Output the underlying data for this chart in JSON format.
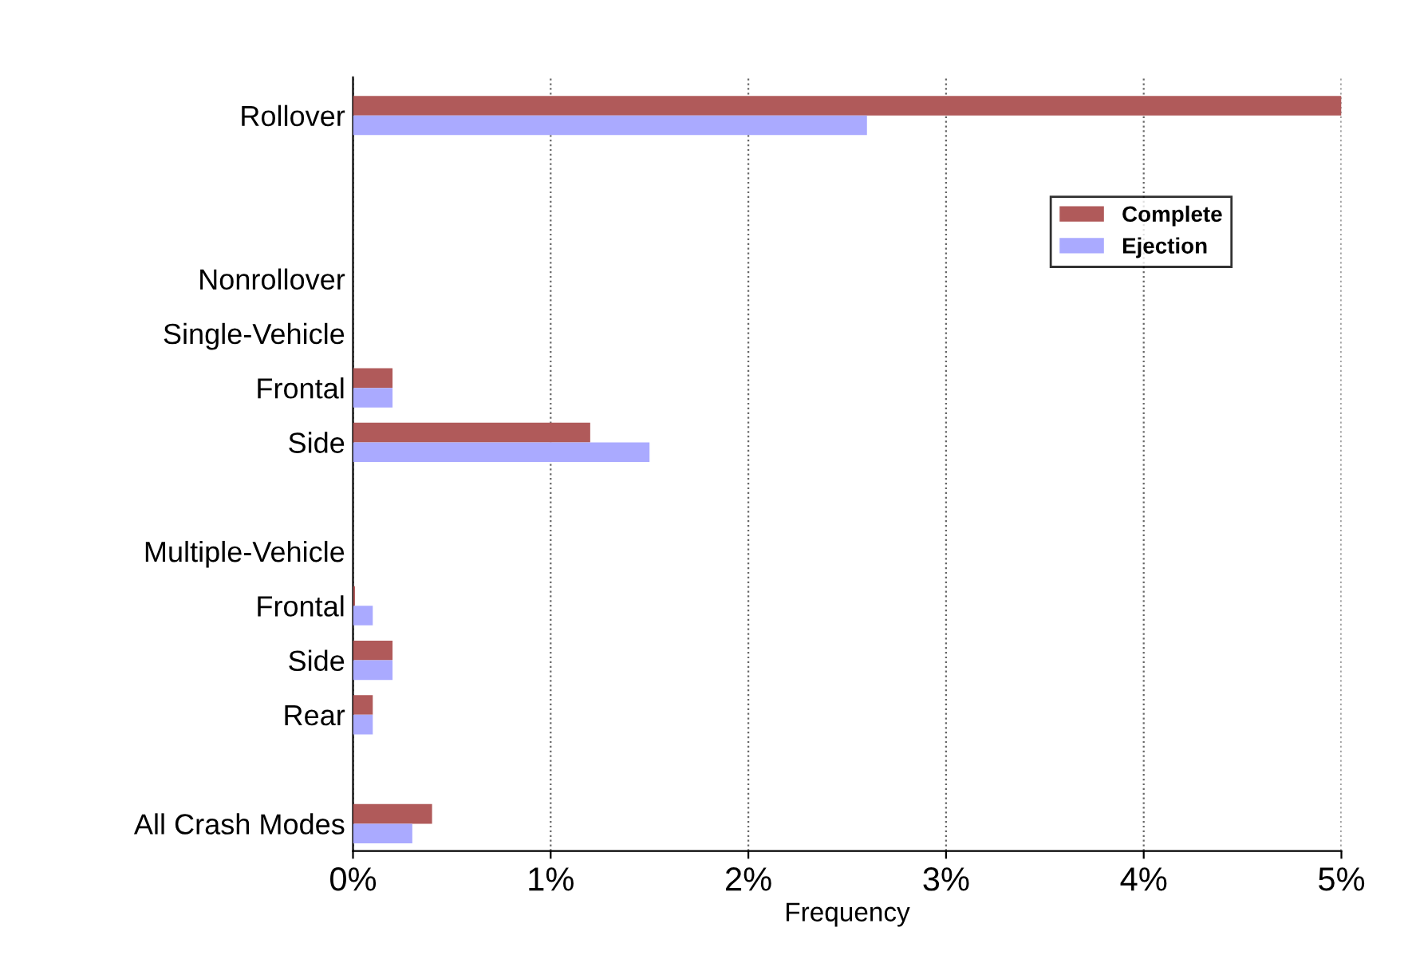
{
  "chart_data": {
    "type": "bar",
    "orientation": "horizontal",
    "categories": [
      "Rollover",
      null,
      null,
      "Nonrollover",
      "Single-Vehicle",
      "Frontal",
      "Side",
      null,
      "Multiple-Vehicle",
      "Frontal",
      "Side",
      "Rear",
      null,
      "All Crash Modes"
    ],
    "series": [
      {
        "name": "Complete",
        "color": "#b05a5a",
        "values": [
          5.0,
          null,
          null,
          null,
          null,
          0.2,
          1.2,
          null,
          null,
          0.01,
          0.2,
          0.1,
          null,
          0.4
        ]
      },
      {
        "name": "Ejection",
        "color": "#aaaaff",
        "values": [
          2.6,
          null,
          null,
          null,
          null,
          0.2,
          1.5,
          null,
          null,
          0.1,
          0.2,
          0.1,
          null,
          0.3
        ]
      }
    ],
    "xlabel": "Frequency",
    "xlim": [
      0,
      5
    ],
    "xticks": [
      {
        "value": 0,
        "label": "0%"
      },
      {
        "value": 1,
        "label": "1%"
      },
      {
        "value": 2,
        "label": "2%"
      },
      {
        "value": 3,
        "label": "3%"
      },
      {
        "value": 4,
        "label": "4%"
      },
      {
        "value": 5,
        "label": "5%"
      }
    ],
    "grid": "x",
    "legend": "top right"
  }
}
